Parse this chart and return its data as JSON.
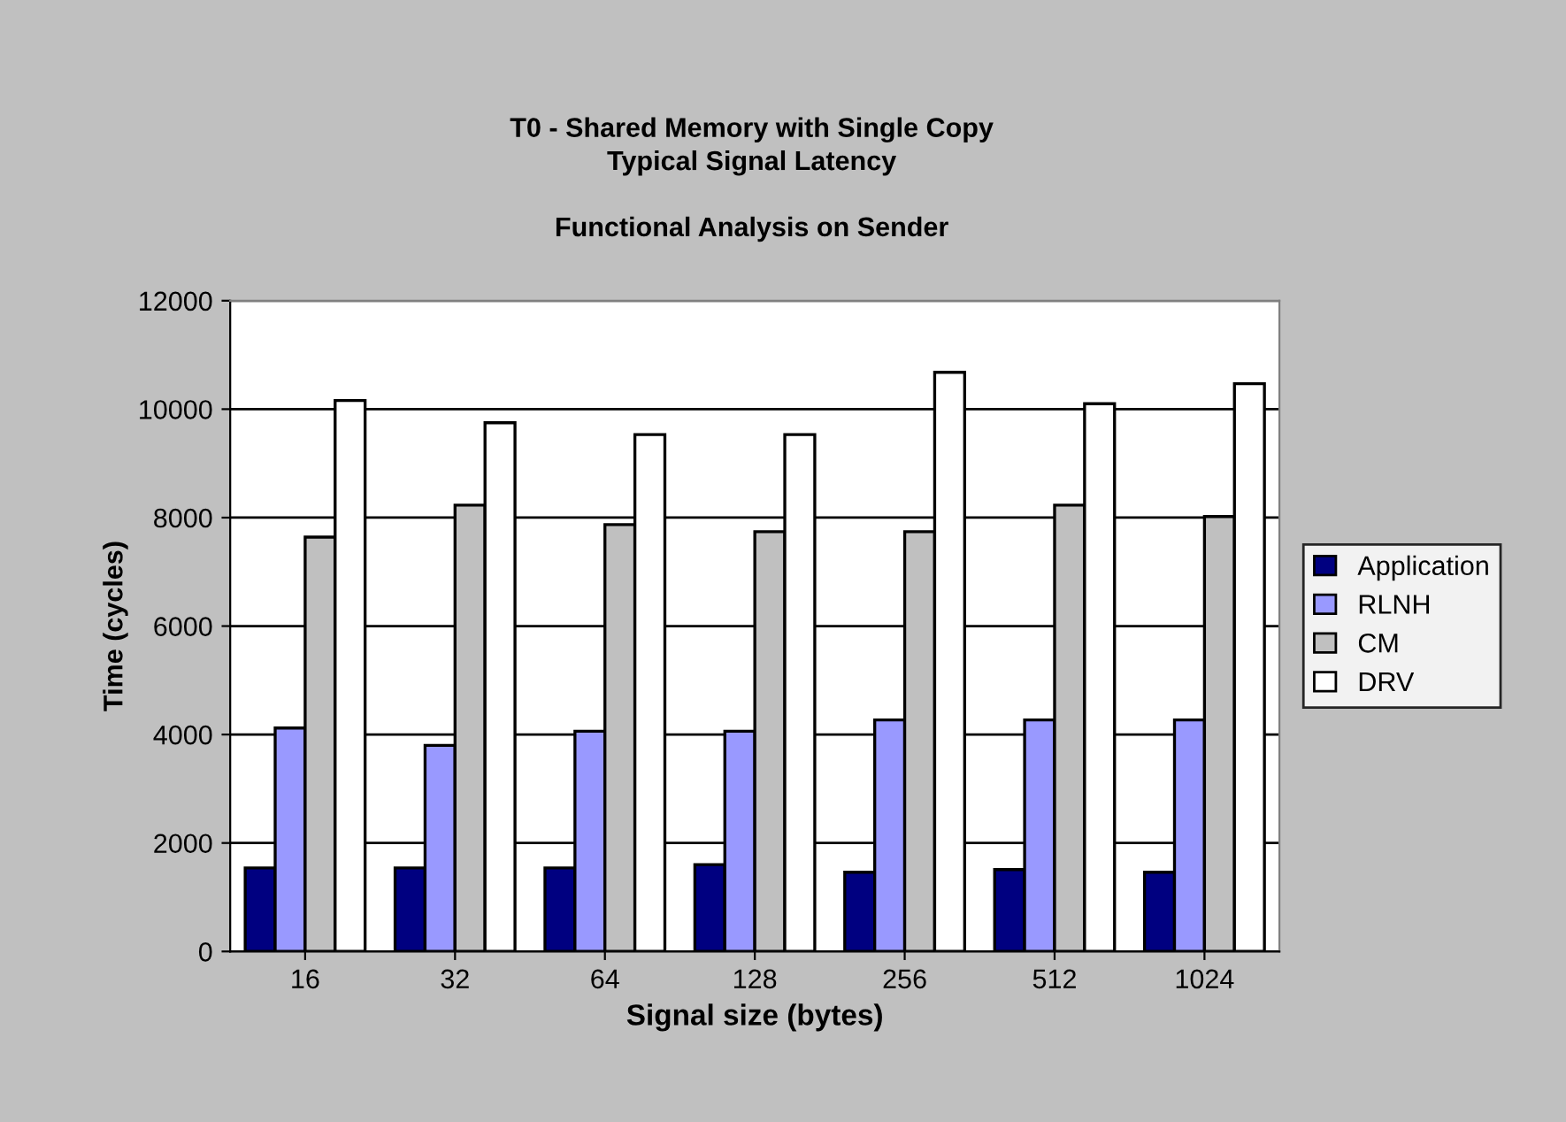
{
  "chart_data": {
    "type": "bar",
    "title": "T0 - Shared Memory with Single Copy\nTypical Signal Latency\n\nFunctional Analysis on Sender",
    "xlabel": "Signal size (bytes)",
    "ylabel": "Time (cycles)",
    "categories": [
      "16",
      "32",
      "64",
      "128",
      "256",
      "512",
      "1024"
    ],
    "series": [
      {
        "name": "Application",
        "color": "#000080",
        "values": [
          1540,
          1540,
          1540,
          1600,
          1460,
          1510,
          1460
        ]
      },
      {
        "name": "RLNH",
        "color": "#9999ff",
        "values": [
          4120,
          3800,
          4060,
          4060,
          4270,
          4270,
          4270
        ]
      },
      {
        "name": "CM",
        "color": "#c0c0c0",
        "values": [
          7640,
          8230,
          7870,
          7740,
          7740,
          8230,
          8020
        ]
      },
      {
        "name": "DRV",
        "color": "#ffffff",
        "values": [
          10160,
          9750,
          9530,
          9530,
          10680,
          10100,
          10470
        ]
      }
    ],
    "ylim": [
      0,
      12000
    ],
    "yticks": [
      0,
      2000,
      4000,
      6000,
      8000,
      10000,
      12000
    ],
    "grid": "y",
    "legend": "right"
  }
}
